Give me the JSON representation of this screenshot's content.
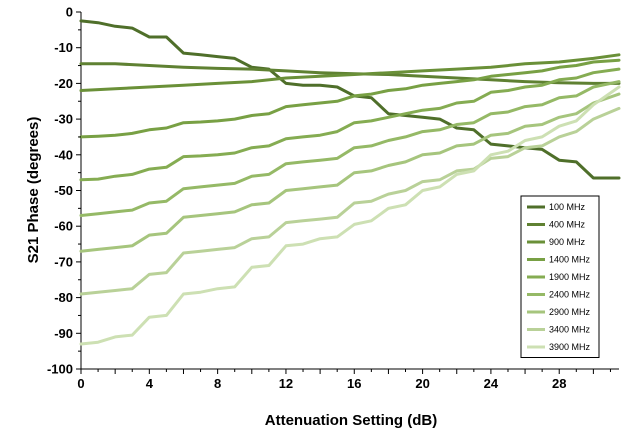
{
  "chart_data": {
    "type": "line",
    "xlabel": "Attenuation Setting (dB)",
    "ylabel": "S21 Phase (degrees)",
    "xlim": [
      0,
      31.5
    ],
    "ylim": [
      -100,
      0
    ],
    "x_ticks": [
      "0",
      "4",
      "8",
      "12",
      "16",
      "20",
      "24",
      "28"
    ],
    "x_tick_values": [
      0,
      4,
      8,
      12,
      16,
      20,
      24,
      28
    ],
    "y_ticks": [
      "0",
      "-10",
      "-20",
      "-30",
      "-40",
      "-50",
      "-60",
      "-70",
      "-80",
      "-90",
      "-100"
    ],
    "y_tick_values": [
      0,
      -10,
      -20,
      -30,
      -40,
      -50,
      -60,
      -70,
      -80,
      -90,
      -100
    ],
    "grid": false,
    "legend_position": "bottom-right",
    "series": [
      {
        "name": "100 MHz",
        "color": "#4f6f2a",
        "x": [
          0,
          1,
          2,
          3,
          4,
          5,
          6,
          7,
          8,
          9,
          10,
          11,
          12,
          13,
          14,
          15,
          16,
          17,
          18,
          19,
          20,
          21,
          22,
          23,
          24,
          25,
          26,
          27,
          28,
          29,
          30,
          31.5
        ],
        "y": [
          -2.5,
          -3,
          -4,
          -4.5,
          -7,
          -7,
          -11.5,
          -12,
          -12.5,
          -13,
          -15.5,
          -16,
          -20,
          -20.5,
          -20.5,
          -21,
          -23.5,
          -24,
          -28.5,
          -29,
          -29.5,
          -30,
          -32.5,
          -33,
          -37,
          -37.5,
          -38,
          -38.5,
          -41.5,
          -42,
          -46.5,
          -46.5
        ]
      },
      {
        "name": "400 MHz",
        "color": "#5f8132",
        "x": [
          0,
          2,
          4,
          6,
          8,
          10,
          12,
          14,
          16,
          18,
          20,
          22,
          24,
          26,
          28,
          30,
          31.5
        ],
        "y": [
          -14.5,
          -14.5,
          -15,
          -15.5,
          -15.8,
          -16,
          -16.5,
          -17,
          -17.3,
          -17.5,
          -18,
          -18.5,
          -19,
          -19.5,
          -19.8,
          -20,
          -20
        ]
      },
      {
        "name": "900 MHz",
        "color": "#6a9038",
        "x": [
          0,
          2,
          4,
          6,
          8,
          10,
          12,
          14,
          16,
          18,
          20,
          22,
          24,
          26,
          28,
          30,
          31.5
        ],
        "y": [
          -22,
          -21.5,
          -21,
          -20.5,
          -20,
          -19.5,
          -18.5,
          -18,
          -17.5,
          -17,
          -16.5,
          -16,
          -15.5,
          -14.5,
          -14,
          -13,
          -12
        ]
      },
      {
        "name": "1400 MHz",
        "color": "#78a044",
        "x": [
          0,
          1,
          2,
          3,
          4,
          5,
          6,
          7,
          8,
          9,
          10,
          11,
          12,
          13,
          14,
          15,
          16,
          17,
          18,
          19,
          20,
          21,
          22,
          23,
          24,
          25,
          26,
          27,
          28,
          29,
          30,
          31.5
        ],
        "y": [
          -35,
          -34.8,
          -34.5,
          -34,
          -33,
          -32.5,
          -31,
          -30.8,
          -30.5,
          -30,
          -29,
          -28.5,
          -26.5,
          -26,
          -25.5,
          -25,
          -23.5,
          -23,
          -22,
          -21.5,
          -20.5,
          -20,
          -19.5,
          -19,
          -18,
          -17.5,
          -17,
          -16.5,
          -15.5,
          -15,
          -14,
          -13.5
        ]
      },
      {
        "name": "1900 MHz",
        "color": "#85ac52",
        "x": [
          0,
          1,
          2,
          3,
          4,
          5,
          6,
          7,
          8,
          9,
          10,
          11,
          12,
          13,
          14,
          15,
          16,
          17,
          18,
          19,
          20,
          21,
          22,
          23,
          24,
          25,
          26,
          27,
          28,
          29,
          30,
          31.5
        ],
        "y": [
          -47,
          -46.8,
          -46,
          -45.5,
          -44,
          -43.5,
          -40.5,
          -40.3,
          -40,
          -39.5,
          -38,
          -37.5,
          -35.5,
          -35,
          -34.5,
          -33.5,
          -31,
          -30.5,
          -29.5,
          -28.5,
          -27.5,
          -27,
          -25.5,
          -25,
          -22.5,
          -22,
          -21,
          -20.5,
          -19,
          -18.5,
          -17,
          -16
        ]
      },
      {
        "name": "2400 MHz",
        "color": "#95b966",
        "x": [
          0,
          1,
          2,
          3,
          4,
          5,
          6,
          7,
          8,
          9,
          10,
          11,
          12,
          13,
          14,
          15,
          16,
          17,
          18,
          19,
          20,
          21,
          22,
          23,
          24,
          25,
          26,
          27,
          28,
          29,
          30,
          31.5
        ],
        "y": [
          -57,
          -56.5,
          -56,
          -55.5,
          -53.5,
          -53,
          -49.5,
          -49,
          -48.5,
          -48,
          -46,
          -45.5,
          -42.5,
          -42,
          -41.5,
          -41,
          -38,
          -37.5,
          -36,
          -35,
          -33.5,
          -33,
          -31.5,
          -31,
          -28.5,
          -28,
          -26.5,
          -26,
          -24,
          -23.5,
          -21,
          -19.5
        ]
      },
      {
        "name": "2900 MHz",
        "color": "#a6c57d",
        "x": [
          0,
          1,
          2,
          3,
          4,
          5,
          6,
          7,
          8,
          9,
          10,
          11,
          12,
          13,
          14,
          15,
          16,
          17,
          18,
          19,
          20,
          21,
          22,
          23,
          24,
          25,
          26,
          27,
          28,
          29,
          30,
          31.5
        ],
        "y": [
          -67,
          -66.5,
          -66,
          -65.5,
          -62.5,
          -62,
          -57.5,
          -57,
          -56.5,
          -56,
          -54,
          -53.5,
          -50,
          -49.5,
          -49,
          -48.5,
          -45,
          -44.5,
          -43,
          -42,
          -40,
          -39.5,
          -37.5,
          -37,
          -34.5,
          -34,
          -32,
          -31.5,
          -29.5,
          -28.5,
          -25.5,
          -23
        ]
      },
      {
        "name": "3400 MHz",
        "color": "#b9d198",
        "x": [
          0,
          1,
          2,
          3,
          4,
          5,
          6,
          7,
          8,
          9,
          10,
          11,
          12,
          13,
          14,
          15,
          16,
          17,
          18,
          19,
          20,
          21,
          22,
          23,
          24,
          25,
          26,
          27,
          28,
          29,
          30,
          31.5
        ],
        "y": [
          -79,
          -78.5,
          -78,
          -77.5,
          -73.5,
          -73,
          -67.5,
          -67,
          -66.5,
          -66,
          -63.5,
          -63,
          -59,
          -58.5,
          -58,
          -57.5,
          -53.5,
          -53,
          -51,
          -50,
          -47.5,
          -47,
          -44.5,
          -44,
          -41,
          -40.5,
          -38,
          -37.5,
          -35,
          -33.5,
          -30,
          -27
        ]
      },
      {
        "name": "3900 MHz",
        "color": "#cde0b3",
        "x": [
          0,
          1,
          2,
          3,
          4,
          5,
          6,
          7,
          8,
          9,
          10,
          11,
          12,
          13,
          14,
          15,
          16,
          17,
          18,
          19,
          20,
          21,
          22,
          23,
          24,
          25,
          26,
          27,
          28,
          29,
          30,
          31.5
        ],
        "y": [
          -93,
          -92.5,
          -91,
          -90.5,
          -85.5,
          -85,
          -79,
          -78.5,
          -77.5,
          -77,
          -71.5,
          -71,
          -65.5,
          -65,
          -63.5,
          -63,
          -59.5,
          -58.5,
          -55,
          -54,
          -50,
          -49,
          -45.5,
          -44.5,
          -40,
          -39,
          -36,
          -35,
          -32,
          -30.5,
          -26,
          -21
        ]
      }
    ]
  }
}
